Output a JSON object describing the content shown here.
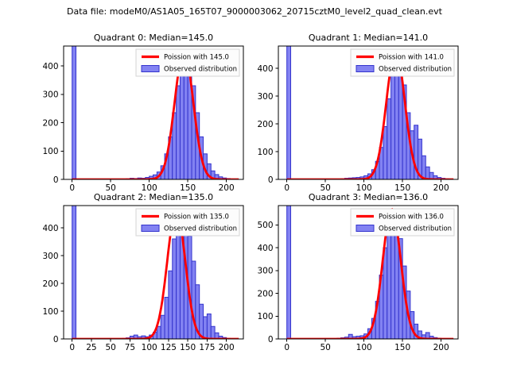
{
  "figure": {
    "suptitle": "Data file: modeM0/AS1A05_165T07_9000003062_20715cztM0_level2_quad_clean.evt",
    "background": "#ffffff"
  },
  "colors": {
    "bar_fill": "#8282f2",
    "bar_edge": "#3434cd",
    "curve": "#ff0000",
    "legend_bg": "#fcfcfc",
    "legend_border": "#d5d5d5",
    "axis": "#000000",
    "text": "#000000"
  },
  "chart_data": [
    {
      "type": "bar",
      "quadrant": 0,
      "title": "Quadrant 0: Median=145.0",
      "median": 145.0,
      "legend": {
        "curve_label": "Poission with 145.0",
        "hist_label": "Observed distribution",
        "position": "upper right"
      },
      "xlabel": "",
      "ylabel": "",
      "bin_start": 0,
      "bin_width": 5,
      "values": [
        5000,
        0,
        0,
        0,
        0,
        0,
        0,
        0,
        0,
        0,
        0,
        0,
        0,
        0,
        2,
        4,
        3,
        5,
        4,
        7,
        11,
        16,
        26,
        48,
        90,
        150,
        235,
        330,
        420,
        445,
        415,
        330,
        235,
        150,
        90,
        55,
        30,
        17,
        9,
        5,
        3,
        1,
        0
      ],
      "first_bin_clipped": true,
      "xlim": [
        -11,
        222
      ],
      "ylim": [
        0,
        470
      ],
      "xticks": [
        0,
        50,
        100,
        150,
        200
      ],
      "yticks": [
        0,
        100,
        200,
        300,
        400
      ],
      "curve": {
        "model": "poisson",
        "lambda": 145,
        "amplitude": 452
      }
    },
    {
      "type": "bar",
      "quadrant": 1,
      "title": "Quadrant 1: Median=141.0",
      "median": 141.0,
      "legend": {
        "curve_label": "Poission with 141.0",
        "hist_label": "Observed distribution",
        "position": "upper right"
      },
      "xlabel": "",
      "ylabel": "",
      "bin_start": 0,
      "bin_width": 5,
      "values": [
        5000,
        0,
        0,
        0,
        0,
        0,
        0,
        0,
        0,
        0,
        0,
        0,
        0,
        0,
        2,
        4,
        5,
        6,
        7,
        9,
        13,
        20,
        35,
        65,
        115,
        190,
        290,
        400,
        460,
        430,
        340,
        240,
        175,
        195,
        145,
        85,
        45,
        25,
        13,
        7,
        4,
        2,
        0
      ],
      "first_bin_clipped": true,
      "xlim": [
        -11,
        222
      ],
      "ylim": [
        0,
        480
      ],
      "xticks": [
        0,
        50,
        100,
        150,
        200
      ],
      "yticks": [
        0,
        100,
        200,
        300,
        400
      ],
      "curve": {
        "model": "poisson",
        "lambda": 141,
        "amplitude": 465
      }
    },
    {
      "type": "bar",
      "quadrant": 2,
      "title": "Quadrant 2: Median=135.0",
      "median": 135.0,
      "legend": {
        "curve_label": "Poission with 135.0",
        "hist_label": "Observed distribution",
        "position": "upper right"
      },
      "xlabel": "",
      "ylabel": "",
      "bin_start": 0,
      "bin_width": 5,
      "values": [
        5000,
        0,
        0,
        0,
        0,
        0,
        0,
        0,
        0,
        0,
        0,
        0,
        0,
        2,
        4,
        10,
        14,
        8,
        11,
        8,
        14,
        24,
        45,
        85,
        150,
        245,
        360,
        455,
        415,
        440,
        370,
        280,
        195,
        125,
        80,
        90,
        45,
        22,
        10,
        5,
        2,
        0,
        0
      ],
      "first_bin_clipped": true,
      "xlim": [
        -11,
        222
      ],
      "ylim": [
        0,
        480
      ],
      "xticks": [
        0,
        25,
        50,
        75,
        100,
        125,
        150,
        175,
        200
      ],
      "yticks": [
        0,
        100,
        200,
        300,
        400
      ],
      "curve": {
        "model": "poisson",
        "lambda": 135,
        "amplitude": 465
      }
    },
    {
      "type": "bar",
      "quadrant": 3,
      "title": "Quadrant 3: Median=136.0",
      "median": 136.0,
      "legend": {
        "curve_label": "Poission with 136.0",
        "hist_label": "Observed distribution",
        "position": "upper right"
      },
      "xlabel": "",
      "ylabel": "",
      "bin_start": 0,
      "bin_width": 5,
      "values": [
        5000,
        0,
        0,
        0,
        0,
        0,
        0,
        0,
        0,
        0,
        0,
        0,
        0,
        3,
        5,
        8,
        20,
        10,
        12,
        14,
        22,
        45,
        90,
        165,
        280,
        400,
        500,
        560,
        535,
        440,
        320,
        210,
        120,
        65,
        35,
        18,
        28,
        12,
        6,
        3,
        2,
        0,
        1
      ],
      "first_bin_clipped": true,
      "xlim": [
        -11,
        222
      ],
      "ylim": [
        0,
        585
      ],
      "xticks": [
        0,
        50,
        100,
        150,
        200
      ],
      "yticks": [
        0,
        100,
        200,
        300,
        400,
        500
      ],
      "curve": {
        "model": "poisson",
        "lambda": 136,
        "amplitude": 570
      }
    }
  ]
}
